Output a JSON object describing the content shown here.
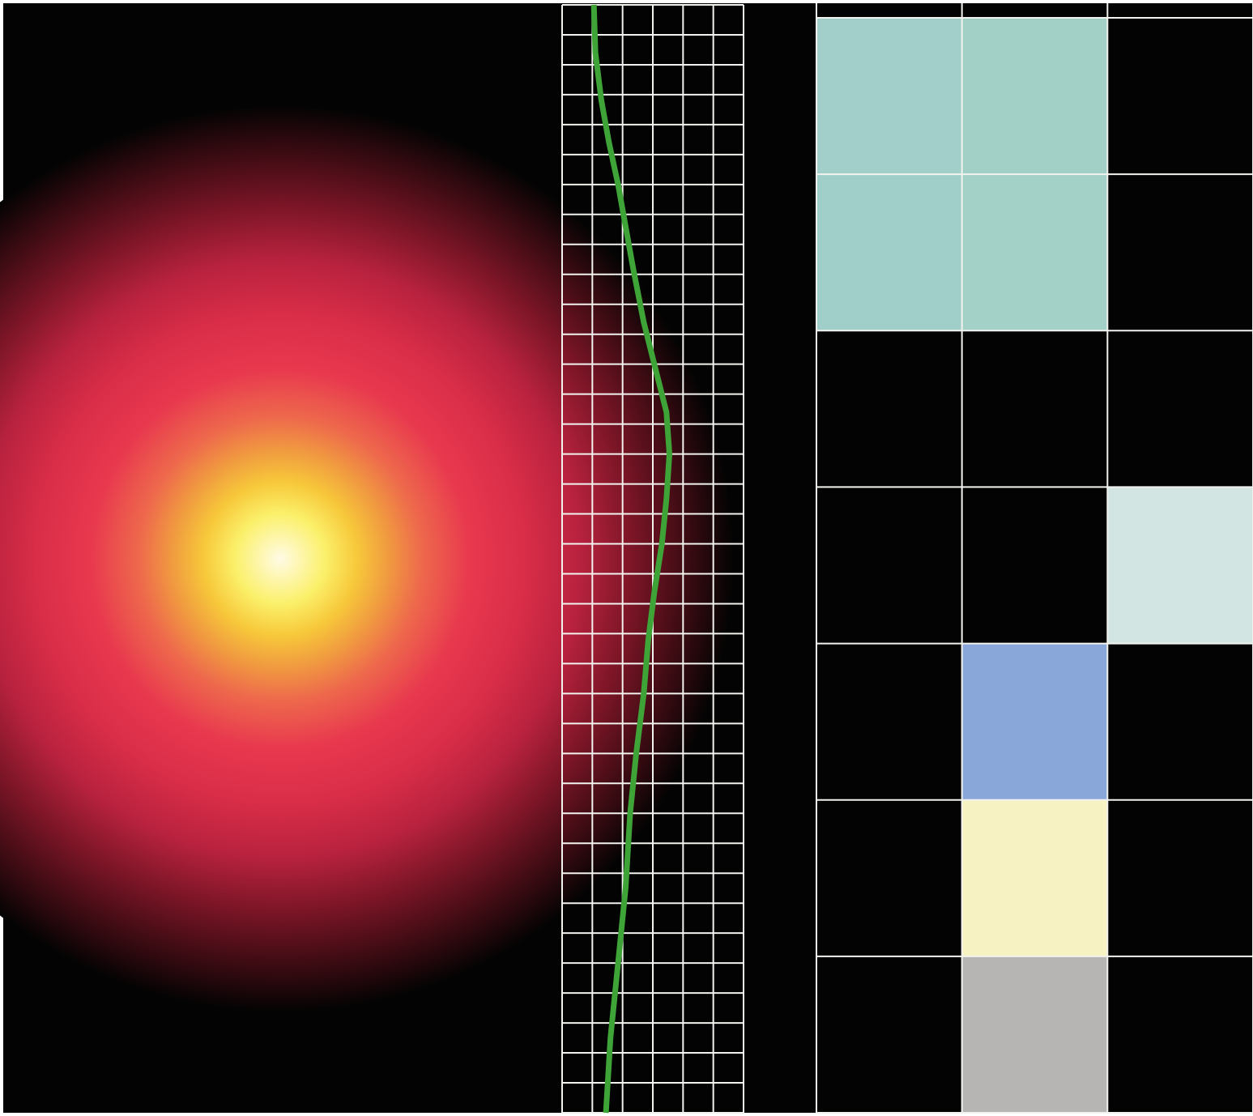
{
  "figure": {
    "background_color": "#030303",
    "grid_line_color": "#f2f2ee",
    "trace_color": "#3fa437",
    "glow": {
      "center_color": "#fffbe6",
      "ring_colors": [
        "#fffbe6",
        "#fbf06a",
        "#f7c83a",
        "#f09a40",
        "#ee6a4c",
        "#e8384e",
        "#d92d48",
        "#b8223e",
        "#7a1526",
        "#3a0b12",
        "#030303"
      ]
    },
    "trace": {
      "x_cells": 6,
      "y_cells": 37,
      "points": [
        [
          1.05,
          0.0
        ],
        [
          1.1,
          1.6
        ],
        [
          1.3,
          3.2
        ],
        [
          1.55,
          4.6
        ],
        [
          1.85,
          6.0
        ],
        [
          2.1,
          7.4
        ],
        [
          2.35,
          8.8
        ],
        [
          2.7,
          10.6
        ],
        [
          3.1,
          12.2
        ],
        [
          3.45,
          13.6
        ],
        [
          3.55,
          15.0
        ],
        [
          3.45,
          16.5
        ],
        [
          3.3,
          18.0
        ],
        [
          3.05,
          19.6
        ],
        [
          2.85,
          21.2
        ],
        [
          2.7,
          23.0
        ],
        [
          2.45,
          25.0
        ],
        [
          2.25,
          27.0
        ],
        [
          2.1,
          29.5
        ],
        [
          1.85,
          32.0
        ],
        [
          1.6,
          34.5
        ],
        [
          1.45,
          37.0
        ]
      ]
    },
    "mosaic": {
      "rows": 7,
      "cols": 3,
      "filled_cells": [
        {
          "row": 0,
          "col": 0,
          "color": "#a2cfc9"
        },
        {
          "row": 0,
          "col": 1,
          "color": "#a2d0c6"
        },
        {
          "row": 1,
          "col": 0,
          "color": "#a0cfca"
        },
        {
          "row": 1,
          "col": 1,
          "color": "#a3d1c7"
        },
        {
          "row": 3,
          "col": 2,
          "color": "#d3e5e2"
        },
        {
          "row": 4,
          "col": 1,
          "color": "#8aa7da"
        },
        {
          "row": 5,
          "col": 1,
          "color": "#f6f2c2"
        },
        {
          "row": 6,
          "col": 1,
          "color": "#b7b4b4"
        }
      ]
    }
  }
}
